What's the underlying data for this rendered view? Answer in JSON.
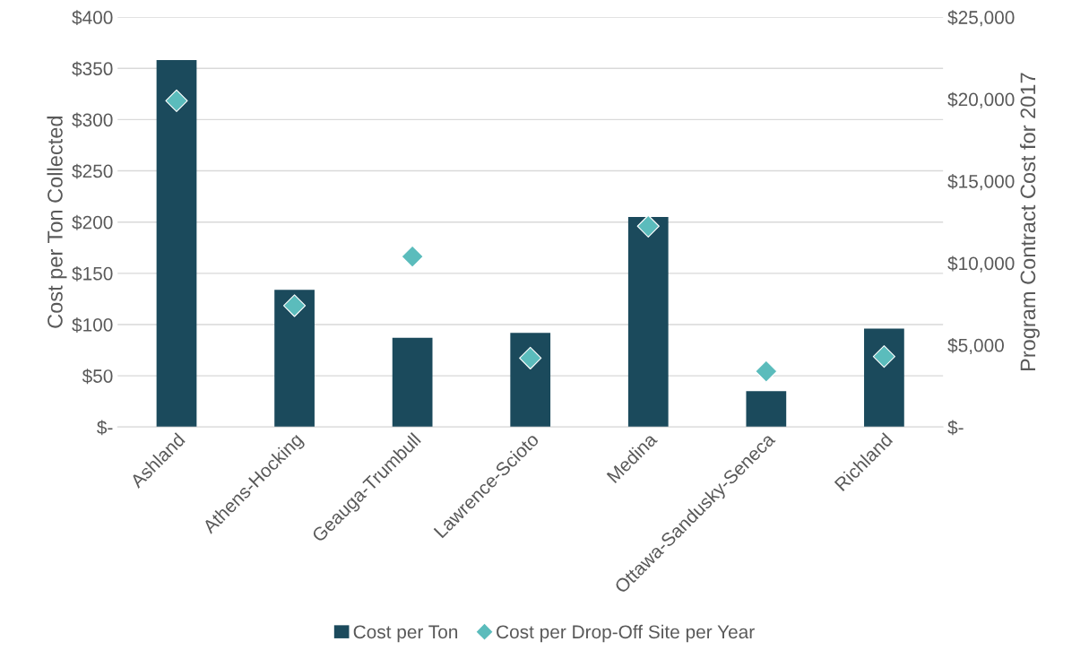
{
  "chart_data": {
    "type": "bar",
    "ylabel": "Cost per Ton Collected",
    "y2label": "Program Contract Cost for 2017",
    "categories": [
      "Ashland",
      "Athens-Hocking",
      "Geauga-Trumbull",
      "Lawrence-Scioto",
      "Medina",
      "Ottawa-Sandusky-Seneca",
      "Richland"
    ],
    "series": [
      {
        "name": "Cost per Ton",
        "color": "#1b4a5c",
        "values": [
          358,
          134,
          87,
          92,
          205,
          35,
          96
        ]
      },
      {
        "name": "Cost per Drop-Off Site per Year",
        "type": "scatter",
        "axis": "y2",
        "marker": "diamond",
        "color": "#5bbcbc",
        "values": [
          19900,
          7400,
          10400,
          4200,
          12250,
          3400,
          4300
        ]
      }
    ],
    "ylim": [
      0,
      400
    ],
    "yticks": [
      {
        "value": 0,
        "label": "$-"
      },
      {
        "value": 50,
        "label": "$50"
      },
      {
        "value": 100,
        "label": "$100"
      },
      {
        "value": 150,
        "label": "$150"
      },
      {
        "value": 200,
        "label": "$200"
      },
      {
        "value": 250,
        "label": "$250"
      },
      {
        "value": 300,
        "label": "$300"
      },
      {
        "value": 350,
        "label": "$350"
      },
      {
        "value": 400,
        "label": "$400"
      }
    ],
    "y2lim": [
      0,
      25000
    ],
    "y2ticks": [
      {
        "value": 0,
        "label": "$-"
      },
      {
        "value": 5000,
        "label": "$5,000"
      },
      {
        "value": 10000,
        "label": "$10,000"
      },
      {
        "value": 15000,
        "label": "$15,000"
      },
      {
        "value": 20000,
        "label": "$20,000"
      },
      {
        "value": 25000,
        "label": "$25,000"
      }
    ],
    "grid": "y",
    "legend": "bottom"
  }
}
